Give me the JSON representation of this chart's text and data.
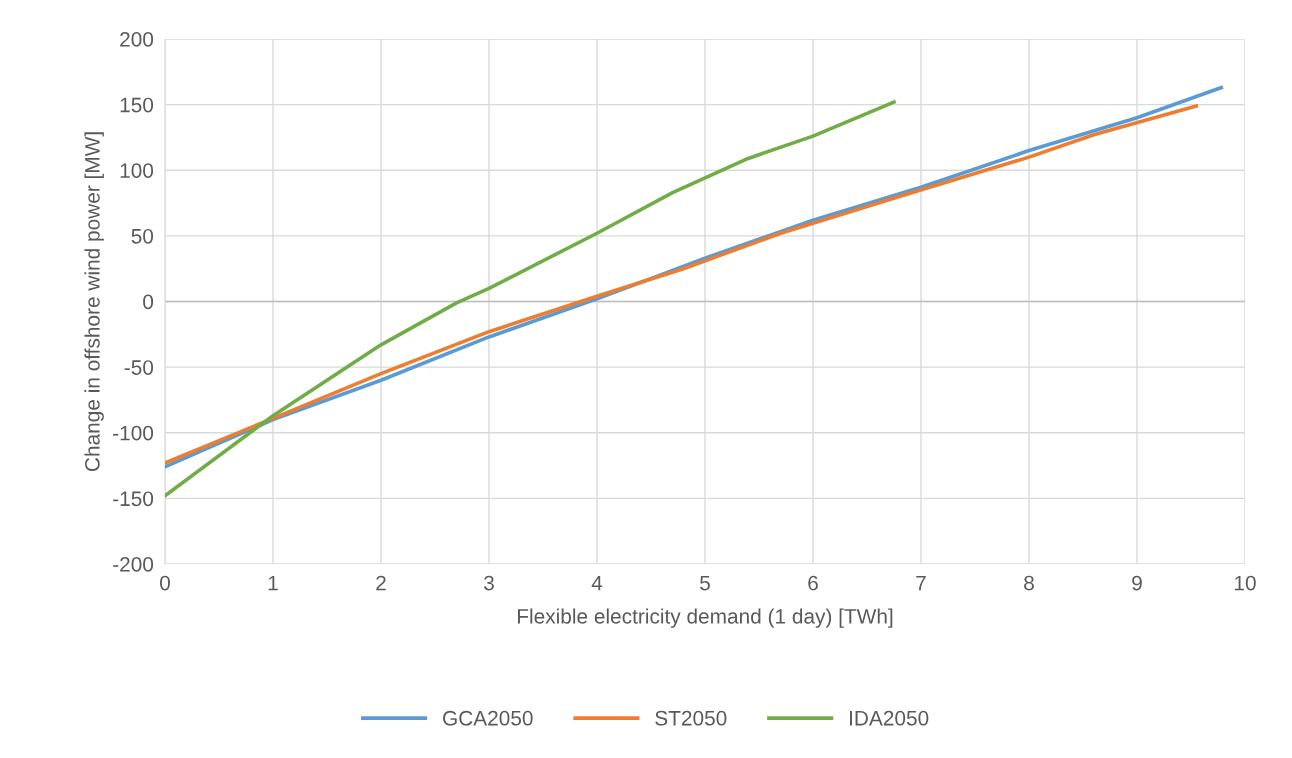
{
  "chart_data": {
    "type": "line",
    "xlabel": "Flexible electricity demand (1 day) [TWh]",
    "ylabel": "Change in offshore wind power [MW]",
    "series": [
      {
        "name": "GCA2050",
        "color": "#5b9bd5",
        "x": [
          0,
          1,
          2,
          3,
          4,
          5,
          6,
          7,
          8,
          9,
          9.78
        ],
        "values": [
          -126,
          -90,
          -60,
          -27,
          2,
          33,
          62,
          87,
          115,
          140,
          163
        ]
      },
      {
        "name": "ST2050",
        "color": "#ed7d31",
        "x": [
          0,
          1,
          2,
          3,
          4,
          4.8,
          5.7,
          6.8,
          8,
          8.6,
          9.55
        ],
        "values": [
          -123,
          -89,
          -55,
          -23,
          4,
          25,
          52,
          80,
          110,
          127,
          149
        ]
      },
      {
        "name": "IDA2050",
        "color": "#70ad47",
        "x": [
          0,
          1,
          2,
          2.7,
          3,
          4,
          4.7,
          5.4,
          6,
          6.75
        ],
        "values": [
          -148,
          -87,
          -33,
          -1,
          10,
          52,
          83,
          109,
          126,
          152
        ]
      }
    ],
    "xlim": [
      0,
      10
    ],
    "xticks": [
      0,
      1,
      2,
      3,
      4,
      5,
      6,
      7,
      8,
      9,
      10
    ],
    "ylim": [
      -200,
      200
    ],
    "yticks": [
      -200,
      -150,
      -100,
      -50,
      0,
      50,
      100,
      150,
      200
    ],
    "grid": true,
    "legend": "bottom",
    "marker": "none",
    "line_style": "solid"
  }
}
